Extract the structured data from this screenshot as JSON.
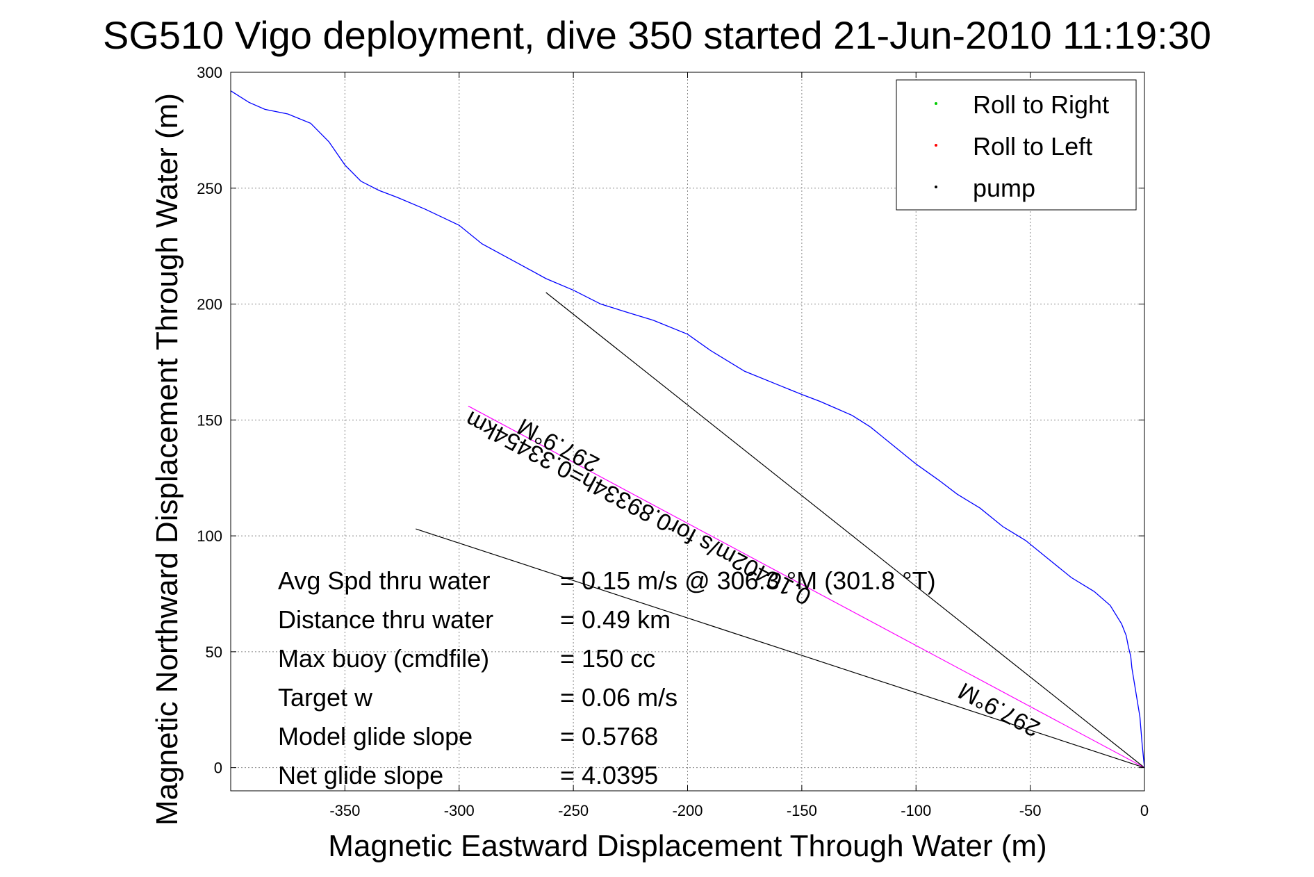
{
  "chart_data": {
    "type": "line",
    "title": "SG510 Vigo deployment, dive 350 started 21-Jun-2010 11:19:30",
    "xlabel": "Magnetic Eastward Displacement Through Water (m)",
    "ylabel": "Magnetic Northward Displacement Through Water (m)",
    "xlim": [
      -400,
      0
    ],
    "ylim": [
      -10,
      300
    ],
    "xticks": [
      -350,
      -300,
      -250,
      -200,
      -150,
      -100,
      -50,
      0
    ],
    "yticks": [
      0,
      50,
      100,
      150,
      200,
      250,
      300
    ],
    "grid": true,
    "legend_position": "top-right",
    "legend": [
      {
        "label": "Roll to Right",
        "color": "#00cc00"
      },
      {
        "label": "Roll to Left",
        "color": "#ff0000"
      },
      {
        "label": "pump",
        "color": "#000000"
      }
    ],
    "series": [
      {
        "color": "#0000ff",
        "x": [
          -400,
          -392,
          -385,
          -375,
          -365,
          -357,
          -350,
          -343,
          -335,
          -327,
          -315,
          -300,
          -290,
          -275,
          -262,
          -250,
          -238,
          -225,
          -215,
          -200,
          -190,
          -175,
          -160,
          -150,
          -142,
          -135,
          -128,
          -120,
          -110,
          -100,
          -90,
          -82,
          -72,
          -62,
          -52,
          -42,
          -32,
          -22,
          -15,
          -10,
          -8,
          -7,
          -6.5,
          -6,
          -5.5,
          -4,
          -2,
          -1,
          0
        ],
        "y": [
          292,
          287,
          284,
          282,
          278,
          270,
          260,
          253,
          249,
          246,
          241,
          234,
          226,
          218,
          211,
          206,
          200,
          196,
          193,
          187,
          180,
          171,
          165,
          161,
          158,
          155,
          152,
          147,
          139,
          131,
          124,
          118,
          112,
          104,
          98,
          90,
          82,
          76,
          70,
          62,
          57,
          52,
          50,
          48,
          43,
          34,
          22,
          10,
          0
        ]
      }
    ],
    "reference_lines": [
      {
        "x": [
          -262,
          0
        ],
        "y": [
          205,
          0
        ],
        "color": "#000000"
      },
      {
        "x": [
          -296,
          0
        ],
        "y": [
          156,
          0
        ],
        "color": "#ff00ff"
      },
      {
        "x": [
          -319,
          0
        ],
        "y": [
          103,
          0
        ],
        "color": "#000000"
      }
    ],
    "annotations": [
      {
        "text": "297.9°M",
        "x": -255,
        "y": 142,
        "rotation": 207.9
      },
      {
        "text": "297.9°M",
        "x": -62,
        "y": 28,
        "rotation": 207.9
      },
      {
        "text": "0.10402m/s for0.89334h=0.33454km",
        "x": -220,
        "y": 115,
        "rotation": 207.9
      }
    ],
    "stats": {
      "labels": [
        "Avg Spd thru water",
        "Distance thru water",
        "Max buoy (cmdfile)",
        "Target w",
        "Model glide slope",
        "Net glide slope"
      ],
      "values": [
        "=  0.15 m/s @ 306.3 °M (301.8 °T)",
        "=  0.49 km",
        "= 150 cc",
        "= 0.06 m/s",
        "= 0.5768",
        "= 4.0395"
      ]
    }
  }
}
